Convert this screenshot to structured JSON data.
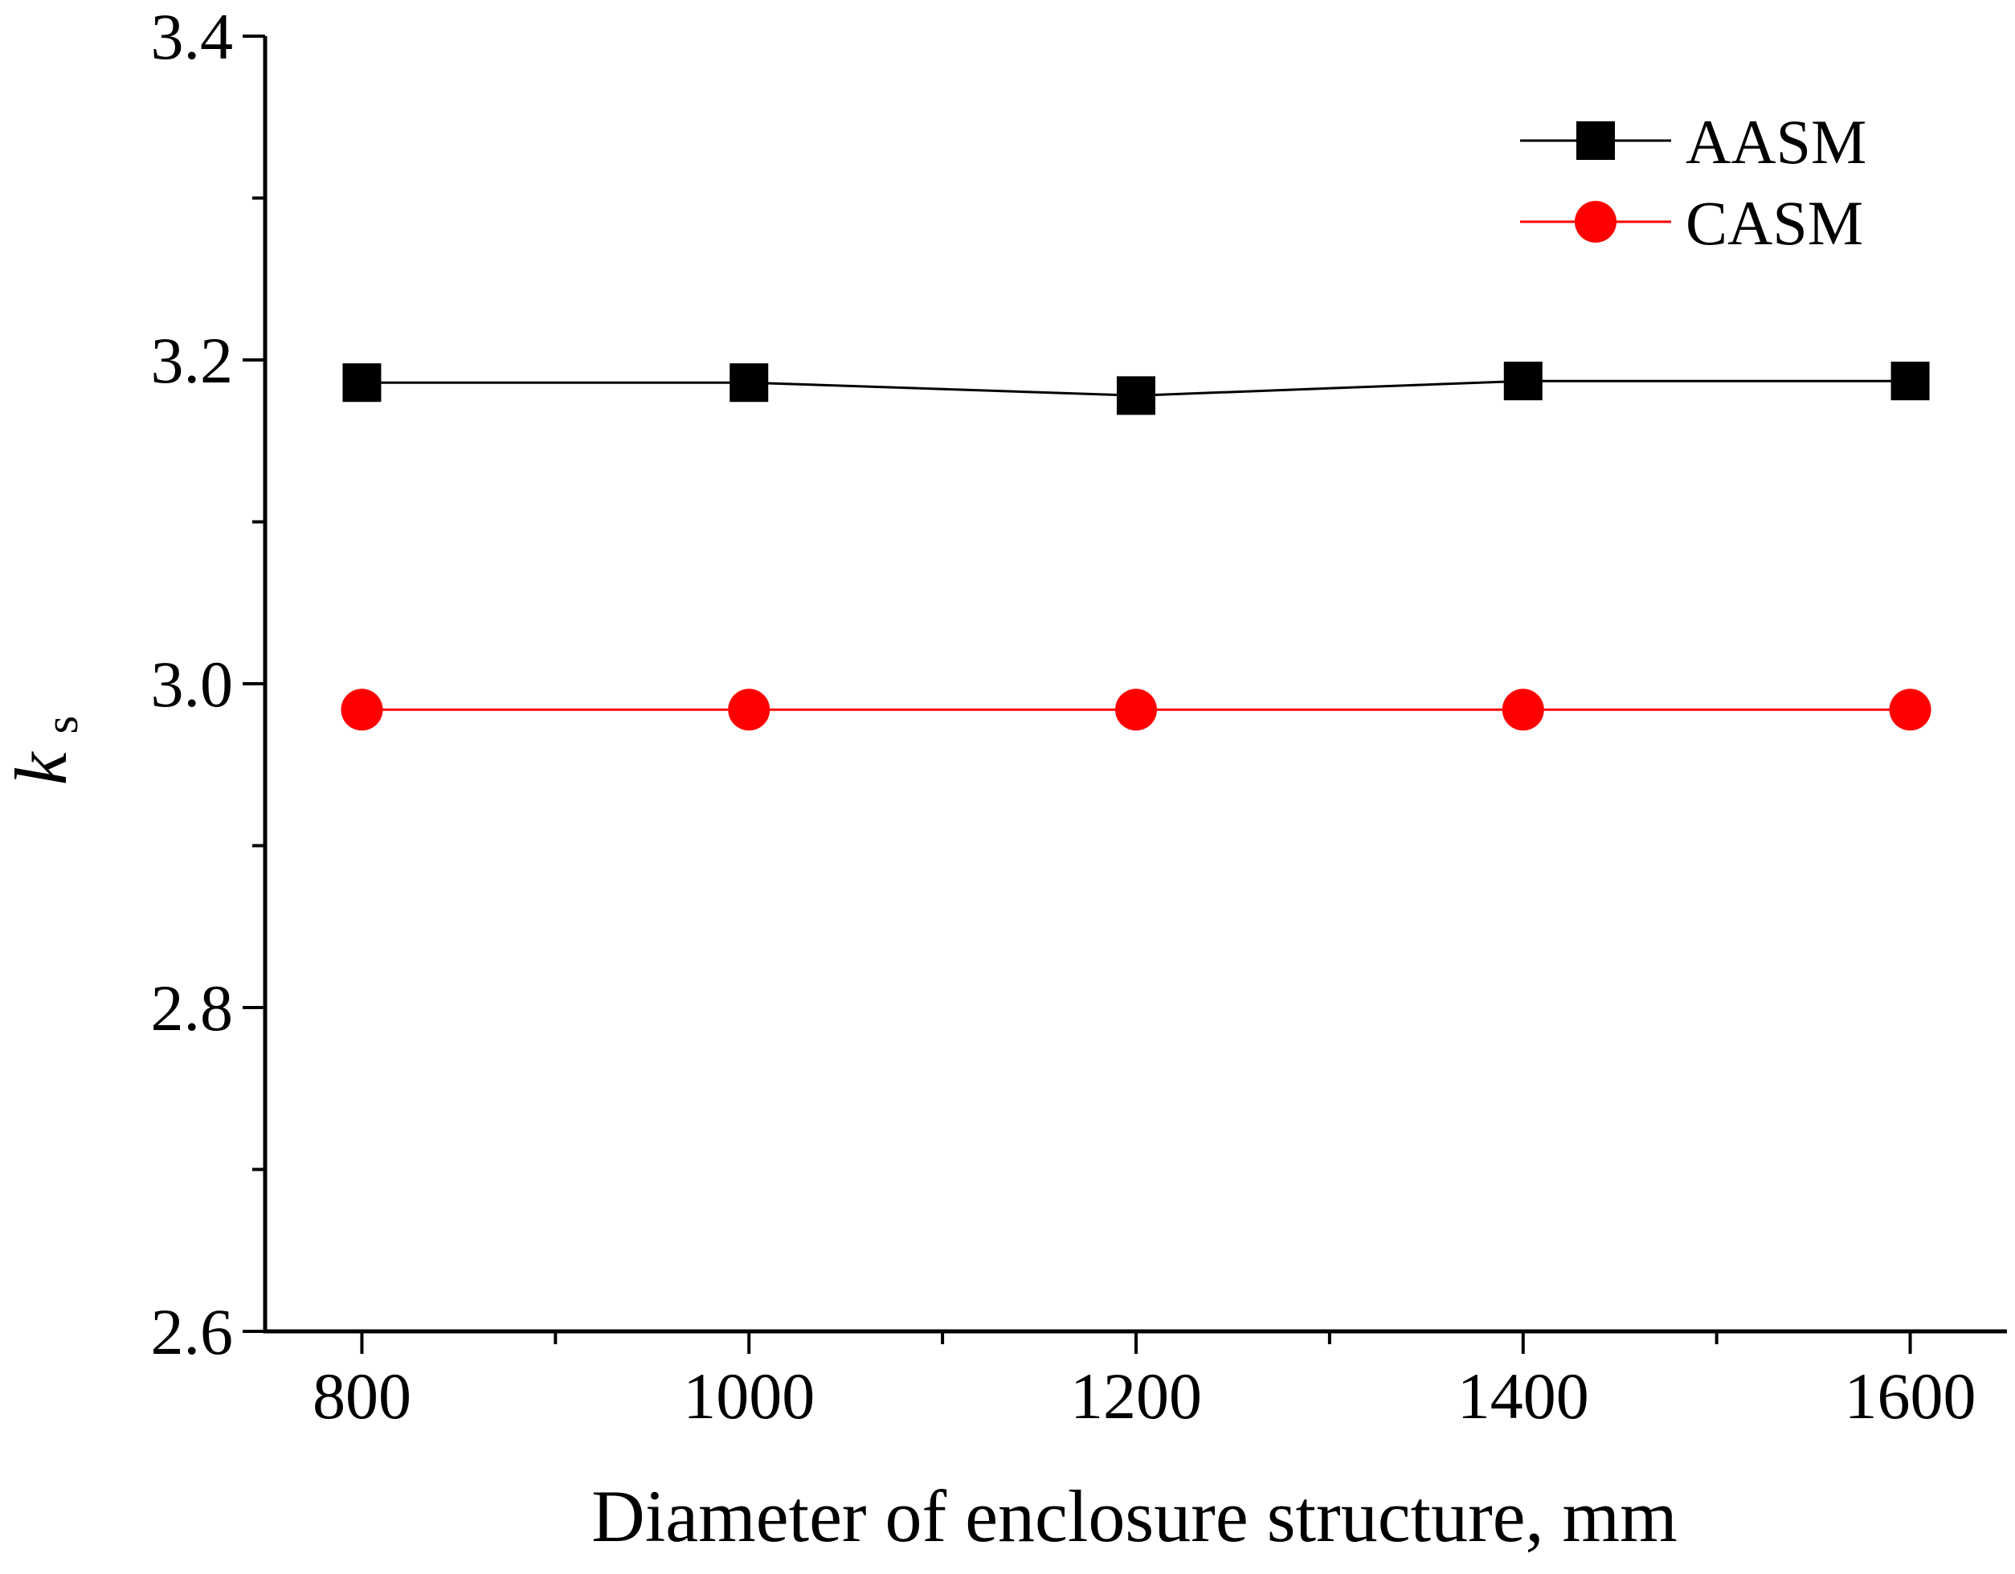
{
  "chart_data": {
    "type": "line",
    "title": "",
    "xlabel": "Diameter of enclosure structure, mm",
    "ylabel": {
      "main": "k",
      "sub": "s"
    },
    "x": [
      800,
      1000,
      1200,
      1400,
      1600
    ],
    "x_tick_labels": [
      "800",
      "1000",
      "1200",
      "1400",
      "1600"
    ],
    "y_tick_labels": [
      "2.6",
      "2.8",
      "3.0",
      "3.2",
      "3.4"
    ],
    "xlim": [
      750,
      1650
    ],
    "ylim": [
      2.6,
      3.4
    ],
    "x_major_step": 200,
    "x_minor_step": 100,
    "y_major_step": 0.2,
    "y_minor_step": 0.1,
    "grid": false,
    "legend_position": "top-right",
    "series": [
      {
        "name": "AASM",
        "marker": "square",
        "color": "#000000",
        "values": [
          3.186,
          3.186,
          3.178,
          3.187,
          3.187
        ]
      },
      {
        "name": "CASM",
        "marker": "circle",
        "color": "#ff0000",
        "values": [
          2.984,
          2.984,
          2.984,
          2.984,
          2.984
        ]
      }
    ]
  }
}
